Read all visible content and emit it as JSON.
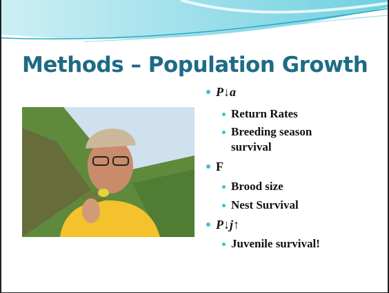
{
  "slide": {
    "title": "Methods – Population Growth",
    "bullets": [
      {
        "text": "P↓a",
        "items": [
          "Return Rates",
          "Breeding season survival"
        ]
      },
      {
        "text": "F",
        "items": [
          "Brood size",
          "Nest Survival"
        ]
      },
      {
        "text": "P↓j↑",
        "items": [
          "Juvenile survival!"
        ]
      }
    ]
  }
}
